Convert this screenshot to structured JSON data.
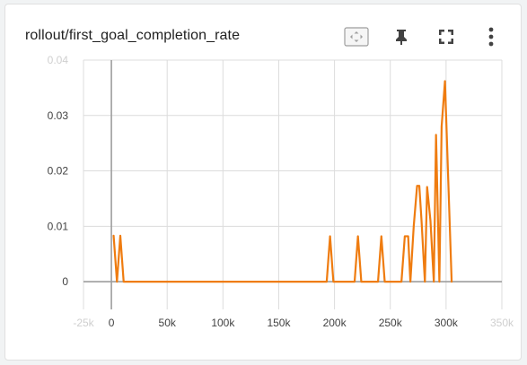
{
  "card": {
    "title": "rollout/first_goal_completion_rate",
    "toolbar": {
      "fit_icon": "fit-domain-icon",
      "pin_icon": "pin-icon",
      "fullscreen_icon": "fullscreen-icon",
      "more_icon": "more-vert-icon"
    }
  },
  "colors": {
    "series": "#ef7c10",
    "grid": "#dcdcdc",
    "axis": "#9e9e9e"
  },
  "chart_data": {
    "type": "line",
    "title": "rollout/first_goal_completion_rate",
    "xlabel": "",
    "ylabel": "",
    "xlim": [
      -25000,
      350000
    ],
    "ylim": [
      -0.005,
      0.04
    ],
    "x_ticks": [
      {
        "value": -25000,
        "label": "-25k",
        "faded": true
      },
      {
        "value": 0,
        "label": "0",
        "faded": false
      },
      {
        "value": 50000,
        "label": "50k",
        "faded": false
      },
      {
        "value": 100000,
        "label": "100k",
        "faded": false
      },
      {
        "value": 150000,
        "label": "150k",
        "faded": false
      },
      {
        "value": 200000,
        "label": "200k",
        "faded": false
      },
      {
        "value": 250000,
        "label": "250k",
        "faded": false
      },
      {
        "value": 300000,
        "label": "300k",
        "faded": false
      },
      {
        "value": 350000,
        "label": "350k",
        "faded": true
      }
    ],
    "y_ticks": [
      {
        "value": 0,
        "label": "0",
        "faded": false
      },
      {
        "value": 0.01,
        "label": "0.01",
        "faded": false
      },
      {
        "value": 0.02,
        "label": "0.02",
        "faded": false
      },
      {
        "value": 0.03,
        "label": "0.03",
        "faded": false
      },
      {
        "value": 0.04,
        "label": "0.04",
        "faded": true
      }
    ],
    "grid": true,
    "series": [
      {
        "x": [
          2000,
          5000,
          8000,
          11000,
          190000,
          193000,
          196000,
          199000,
          215000,
          218000,
          221000,
          224000,
          236000,
          239000,
          242000,
          245000,
          260000,
          263000,
          266000,
          268000,
          271000,
          274000,
          276000,
          278000,
          281000,
          283000,
          286000,
          289000,
          291000,
          294000,
          296000,
          299000,
          302000,
          305000
        ],
        "y": [
          0.0083,
          0.0,
          0.0083,
          0.0,
          0.0,
          0.0,
          0.0082,
          0.0,
          0.0,
          0.0,
          0.0082,
          0.0,
          0.0,
          0.0,
          0.0082,
          0.0,
          0.0,
          0.0082,
          0.0082,
          0.0,
          0.01,
          0.0173,
          0.0173,
          0.011,
          0.0,
          0.0171,
          0.011,
          0.0,
          0.0265,
          0.0,
          0.028,
          0.0362,
          0.018,
          0.0
        ]
      }
    ]
  }
}
